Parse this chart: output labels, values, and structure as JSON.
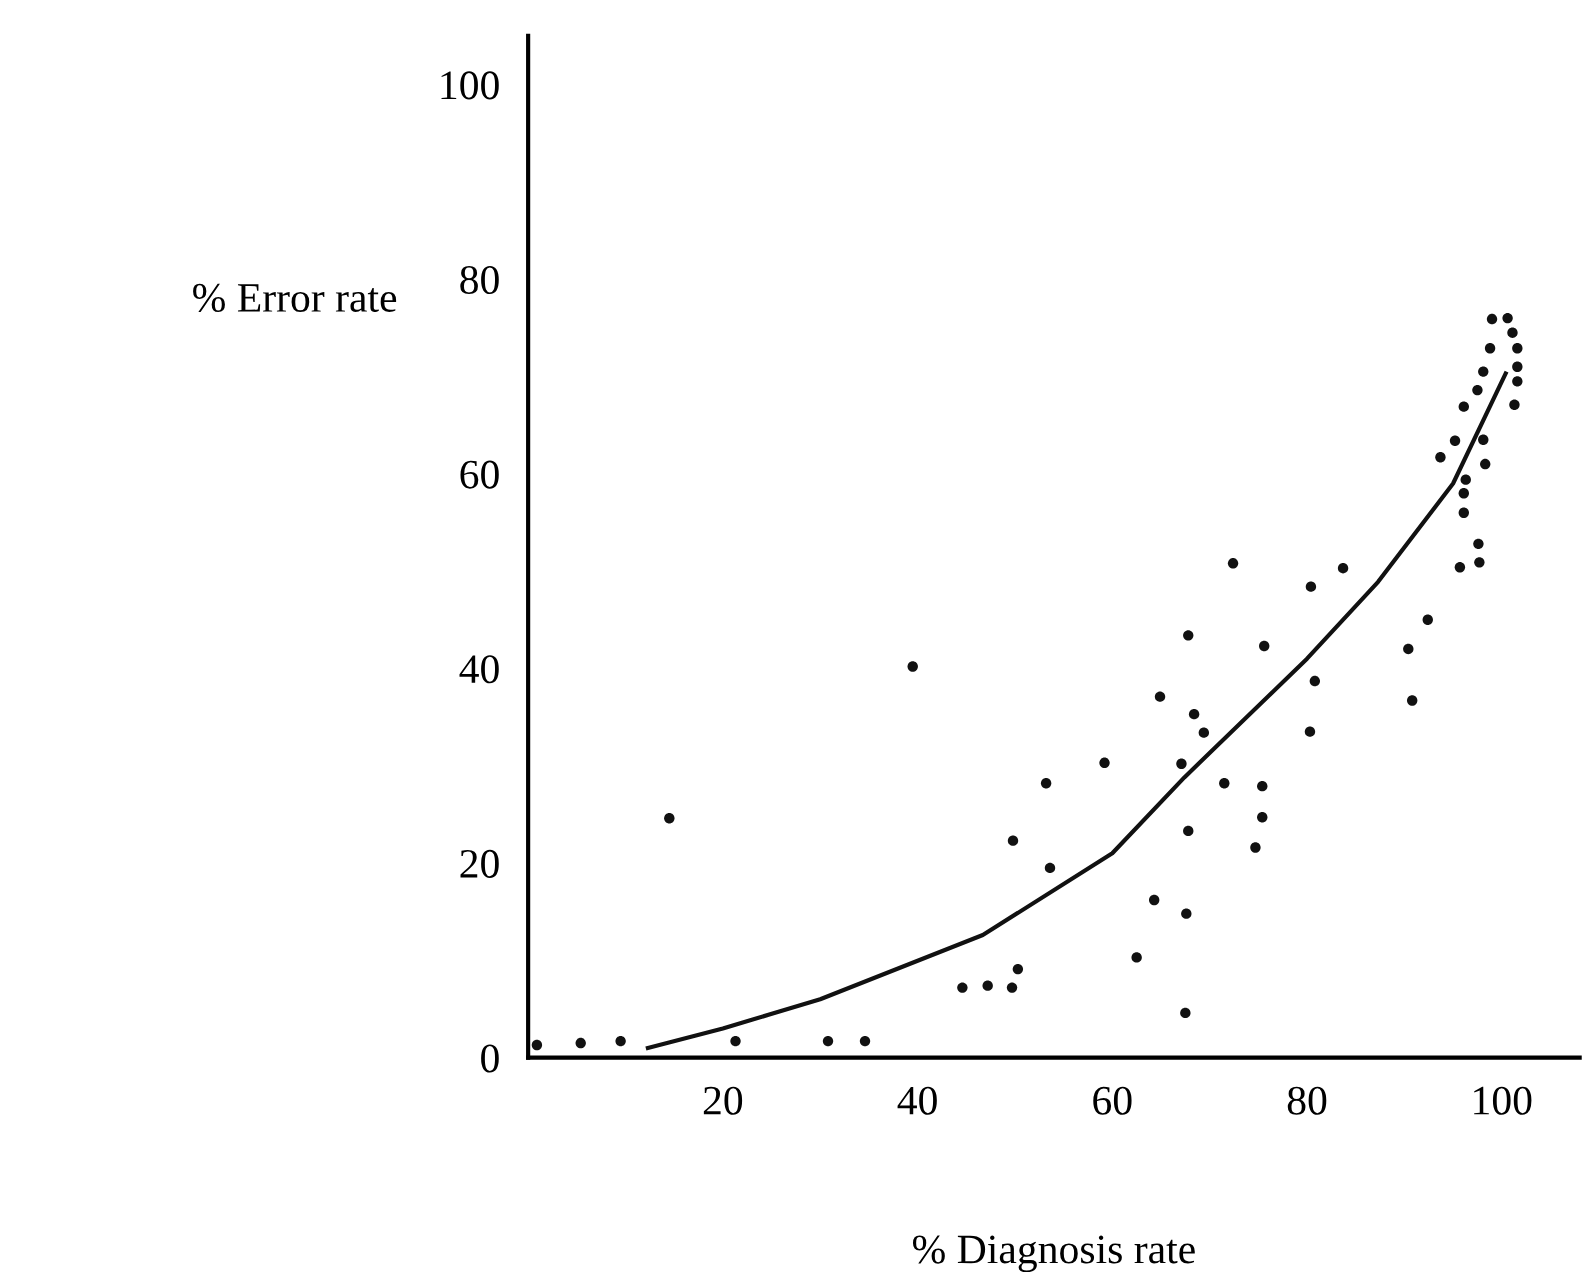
{
  "chart_data": {
    "type": "scatter",
    "xlabel": "% Diagnosis rate",
    "ylabel": "% Error rate",
    "xlim": [
      0,
      108
    ],
    "ylim": [
      0,
      105
    ],
    "xticks": [
      20,
      40,
      60,
      80,
      100
    ],
    "yticks": [
      0,
      20,
      40,
      60,
      80,
      100
    ],
    "grid": false,
    "marker": "circle",
    "series": [
      {
        "color": "#111111",
        "x": [
          0.9,
          5.4,
          9.5,
          14.5,
          21.3,
          30.8,
          34.6,
          39.5,
          44.6,
          47.2,
          49.7,
          50.3,
          49.8,
          53.2,
          53.6,
          72.4,
          83.7,
          80.4,
          67.8,
          75.6,
          80.8,
          64.9,
          68.4,
          69.4,
          80.3,
          59.2,
          67.1,
          71.5,
          75.4,
          75.4,
          67.8,
          74.7,
          64.3,
          67.6,
          62.5,
          67.5,
          99.0,
          100.6,
          101.1,
          98.8,
          101.6,
          101.6,
          98.1,
          101.6,
          97.5,
          101.3,
          96.1,
          95.2,
          98.1,
          93.7,
          98.3,
          96.3,
          96.1,
          96.1,
          97.6,
          97.7,
          95.7,
          92.4,
          90.4,
          90.8
        ],
        "values": [
          1.3,
          1.5,
          1.7,
          24.6,
          1.7,
          1.7,
          1.7,
          40.2,
          7.2,
          7.4,
          7.2,
          9.1,
          22.3,
          28.2,
          19.5,
          50.8,
          50.3,
          48.4,
          43.4,
          42.3,
          38.7,
          37.1,
          35.3,
          33.4,
          33.5,
          30.3,
          30.2,
          28.2,
          27.9,
          24.7,
          23.3,
          21.6,
          16.2,
          14.8,
          10.3,
          4.6,
          75.9,
          76.0,
          74.5,
          72.9,
          72.9,
          71.0,
          70.5,
          69.5,
          68.6,
          67.1,
          66.9,
          63.4,
          63.5,
          61.7,
          61.0,
          59.4,
          58.0,
          56.0,
          52.8,
          50.9,
          50.4,
          45.0,
          42.0,
          36.7
        ]
      },
      {
        "type": "line",
        "color": "#111111",
        "marker": "none",
        "x": [
          12.3,
          20,
          30,
          46.7,
          60,
          67.4,
          80,
          87.3,
          95,
          100.4
        ],
        "values": [
          1,
          3,
          6,
          12.6,
          21,
          28.8,
          41,
          48.9,
          59,
          70.3
        ]
      }
    ]
  }
}
